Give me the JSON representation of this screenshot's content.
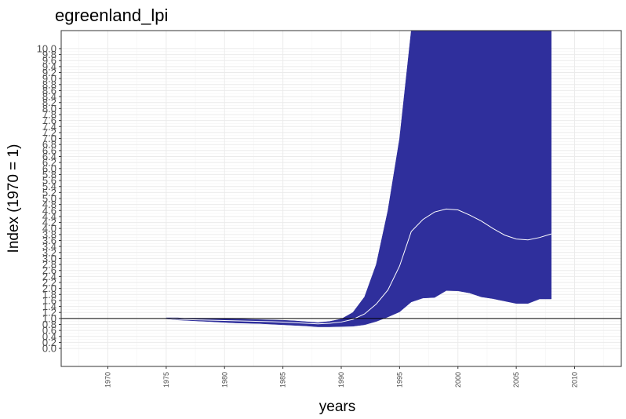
{
  "chart_data": {
    "type": "area",
    "title": "egreenland_lpi",
    "xlabel": "years",
    "ylabel": "Index (1970 = 1)",
    "xlim": [
      1966,
      2014
    ],
    "ylim": [
      -0.6,
      10.6
    ],
    "x_ticks": [
      "1970",
      "1975",
      "1980",
      "1985",
      "1990",
      "1995",
      "2000",
      "2005",
      "2010"
    ],
    "y_ticks": [
      "0.0",
      "0.2",
      "0.4",
      "0.6",
      "0.8",
      "1.0",
      "1.2",
      "1.4",
      "1.6",
      "1.8",
      "2.0",
      "2.2",
      "2.4",
      "2.6",
      "2.8",
      "3.0",
      "3.2",
      "3.4",
      "3.6",
      "3.8",
      "4.0",
      "4.2",
      "4.4",
      "4.6",
      "4.8",
      "5.0",
      "5.2",
      "5.4",
      "5.6",
      "5.8",
      "6.0",
      "6.2",
      "6.4",
      "6.6",
      "6.8",
      "7.0",
      "7.2",
      "7.4",
      "7.6",
      "7.8",
      "8.0",
      "8.2",
      "8.4",
      "8.6",
      "8.8",
      "9.0",
      "9.2",
      "9.4",
      "9.6",
      "9.8",
      "10.0"
    ],
    "reference_line": 1.0,
    "grid": true,
    "colors": {
      "band": "#2f2f9c",
      "line": "#ffffff",
      "reference": "#000000",
      "grid": "#ebebeb"
    },
    "series": [
      {
        "name": "",
        "x": [
          1975,
          1976,
          1977,
          1978,
          1979,
          1980,
          1981,
          1982,
          1983,
          1984,
          1985,
          1986,
          1987,
          1988,
          1989,
          1990,
          1991,
          1992,
          1993,
          1994,
          1995,
          1996,
          1997,
          1998,
          1999,
          2000,
          2001,
          2002,
          2003,
          2004,
          2005,
          2006,
          2007,
          2008
        ],
        "index": [
          1.0,
          0.97,
          0.96,
          0.95,
          0.94,
          0.93,
          0.92,
          0.91,
          0.9,
          0.89,
          0.88,
          0.86,
          0.84,
          0.82,
          0.84,
          0.88,
          0.97,
          1.15,
          1.48,
          1.95,
          2.75,
          3.9,
          4.3,
          4.55,
          4.65,
          4.62,
          4.45,
          4.25,
          4.0,
          3.78,
          3.65,
          3.62,
          3.7,
          3.82
        ],
        "lower": [
          0.99,
          0.95,
          0.93,
          0.91,
          0.89,
          0.87,
          0.85,
          0.84,
          0.83,
          0.81,
          0.79,
          0.77,
          0.75,
          0.72,
          0.72,
          0.73,
          0.74,
          0.79,
          0.9,
          1.05,
          1.22,
          1.55,
          1.68,
          1.7,
          1.93,
          1.92,
          1.85,
          1.72,
          1.66,
          1.58,
          1.5,
          1.5,
          1.65,
          1.65
        ],
        "upper": [
          1.02,
          1.02,
          0.99,
          0.99,
          0.99,
          0.99,
          0.98,
          0.97,
          0.96,
          0.95,
          0.94,
          0.92,
          0.89,
          0.86,
          0.9,
          0.98,
          1.2,
          1.72,
          2.8,
          4.6,
          7.0,
          10.6,
          10.6,
          10.6,
          10.6,
          10.6,
          10.6,
          10.6,
          10.6,
          10.6,
          10.6,
          10.6,
          10.6,
          10.6
        ]
      }
    ]
  }
}
